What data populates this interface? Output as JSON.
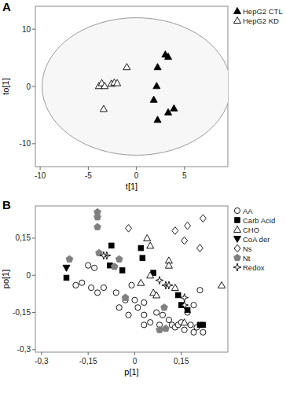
{
  "chart_data": [
    {
      "type": "scatter",
      "title": "A",
      "x_label": "t[1]",
      "y_label": "to[1]",
      "xlim": [
        -10.5,
        9.5
      ],
      "ylim": [
        -14,
        14
      ],
      "xticks": [
        -10,
        -5,
        0,
        5
      ],
      "yticks": [
        -10,
        0,
        10
      ],
      "grid": false,
      "legend": "right",
      "ellipse": {
        "cx": 0,
        "cy": 0,
        "rx": 9.8,
        "ry": 12
      },
      "series": [
        {
          "name": "HepG2 CTL",
          "color": "#000000",
          "marker": "triangle-filled",
          "x": [
            3.0,
            3.3,
            2.2,
            2.1,
            1.8,
            3.9,
            3.3,
            2.2
          ],
          "values": [
            5.6,
            5.2,
            3.4,
            0.1,
            -2.3,
            -3.8,
            -4.5,
            -5.8
          ]
        },
        {
          "name": "HepG2 KD",
          "color": "#000000",
          "marker": "triangle-open",
          "x": [
            -3.9,
            -3.6,
            -3.3,
            -2.6,
            -2.3,
            -2.0,
            -1.0,
            -3.4
          ],
          "values": [
            0.1,
            0.6,
            0.1,
            0.5,
            0.7,
            0.6,
            3.4,
            -3.9
          ]
        }
      ]
    },
    {
      "type": "scatter",
      "title": "B",
      "x_label": "p[1]",
      "y_label": "po[1]",
      "xlim": [
        -0.32,
        0.3
      ],
      "ylim": [
        -0.31,
        0.28
      ],
      "xticks": [
        {
          "value": -0.3,
          "label": "-0,3"
        },
        {
          "value": -0.15,
          "label": "-0,15"
        },
        0,
        {
          "value": 0.15,
          "label": "0,15"
        }
      ],
      "yticks": [
        {
          "value": -0.3,
          "label": "-0,3"
        },
        {
          "value": -0.15,
          "label": "-0,15"
        },
        0,
        {
          "value": 0.15,
          "label": "0,15"
        }
      ],
      "grid": false,
      "legend": "right",
      "series": [
        {
          "name": "AA",
          "color": "#000000",
          "marker": "circle-open",
          "x": [
            -0.13,
            -0.15,
            -0.17,
            -0.19,
            -0.14,
            -0.12,
            -0.1,
            -0.06,
            -0.03,
            -0.05,
            -0.02,
            0,
            0.01,
            0.03,
            0.03,
            0.05,
            0.07,
            0.08,
            0.09,
            0.11,
            0.12,
            0.13,
            0.14,
            0.15,
            0.16,
            0.18,
            0.19,
            0.2,
            0.22,
            0.17,
            0.19,
            0.21,
            0.03,
            -0.01
          ],
          "values": [
            0.03,
            0.04,
            -0.03,
            -0.04,
            -0.05,
            -0.07,
            -0.05,
            -0.07,
            -0.1,
            -0.13,
            -0.16,
            -0.1,
            -0.13,
            -0.16,
            -0.2,
            -0.19,
            -0.15,
            -0.2,
            -0.16,
            -0.18,
            -0.2,
            -0.21,
            -0.2,
            -0.19,
            -0.22,
            -0.2,
            -0.23,
            -0.21,
            -0.23,
            -0.15,
            -0.12,
            -0.06,
            -0.11,
            -0.04
          ]
        },
        {
          "name": "Carb Acid",
          "color": "#000000",
          "marker": "square-filled",
          "x": [
            -0.075,
            -0.08,
            0.025,
            0.02,
            -0.22,
            -0.04,
            0.06,
            0.14,
            0.15,
            0.17,
            0.21,
            0.22
          ],
          "values": [
            0.12,
            0.04,
            0.07,
            0.11,
            -0.01,
            0.02,
            0.01,
            -0.08,
            -0.12,
            -0.14,
            -0.2,
            -0.2
          ]
        },
        {
          "name": "CHO",
          "color": "#000000",
          "marker": "triangle-open",
          "x": [
            0.04,
            0.05,
            0.11,
            0.11,
            0.05,
            0.02,
            0.06,
            0.13,
            0.28,
            0.16,
            0.07
          ],
          "values": [
            0.15,
            0.12,
            0.06,
            0.04,
            0,
            -0.03,
            -0.07,
            -0.05,
            -0.04,
            -0.19,
            -0.08
          ]
        },
        {
          "name": "CoA der",
          "color": "#000000",
          "marker": "triangle-down-filled",
          "x": [
            -0.22
          ],
          "values": [
            0.03
          ]
        },
        {
          "name": "Ns",
          "color": "#000000",
          "marker": "diamond-open",
          "x": [
            0.22,
            0.17,
            0.16,
            0.21,
            -0.02,
            0.13
          ],
          "values": [
            0.23,
            0.2,
            0.14,
            0.11,
            0.19,
            0.18
          ]
        },
        {
          "name": "Nt",
          "color": "#808080",
          "marker": "pentagon-filled",
          "x": [
            -0.12,
            -0.12,
            -0.12,
            -0.21,
            -0.115,
            -0.065,
            -0.05,
            0.095,
            0.1,
            0.08,
            -0.03
          ],
          "values": [
            0.255,
            0.235,
            0.195,
            0.065,
            0.09,
            0.035,
            0.065,
            -0.13,
            -0.215,
            -0.22,
            -0.09
          ]
        },
        {
          "name": "Redox",
          "color": "#000000",
          "marker": "star-open",
          "x": [
            -0.09,
            -0.1,
            0.1,
            0.11,
            0.08,
            0.16,
            0.16
          ],
          "values": [
            0.08,
            0.08,
            -0.04,
            -0.04,
            -0.02,
            -0.12,
            -0.09
          ]
        }
      ]
    }
  ]
}
